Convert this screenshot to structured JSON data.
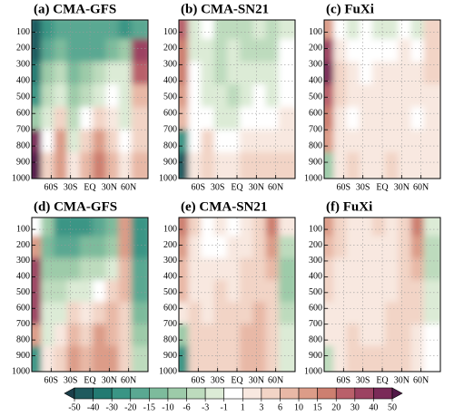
{
  "chart_data": [
    {
      "type": "heatmap",
      "title": "(a) CMA-GFS",
      "xlim": [
        -90,
        90
      ],
      "ylim": [
        1000,
        25
      ],
      "grid": true,
      "xticks": [
        {
          "value": -60,
          "label": "60S"
        },
        {
          "value": -30,
          "label": "30S"
        },
        {
          "value": 0,
          "label": "EQ"
        },
        {
          "value": 30,
          "label": "30N"
        },
        {
          "value": 60,
          "label": "60N"
        }
      ],
      "yticks": [
        100,
        200,
        300,
        400,
        500,
        600,
        700,
        800,
        900,
        1000
      ],
      "values": [
        [
          -50,
          -30,
          -20,
          -20,
          -20,
          -20,
          -20,
          -30,
          -20
        ],
        [
          -50,
          -20,
          -15,
          -20,
          -20,
          -20,
          -15,
          -10,
          30
        ],
        [
          -40,
          -10,
          -6,
          -15,
          -10,
          -6,
          -3,
          -3,
          20
        ],
        [
          -30,
          -6,
          -3,
          -10,
          -6,
          -3,
          -1,
          -3,
          6
        ],
        [
          -10,
          -3,
          3,
          -6,
          -1,
          3,
          1,
          -3,
          3
        ],
        [
          40,
          -1,
          10,
          -3,
          3,
          10,
          3,
          -1,
          3
        ],
        [
          50,
          3,
          10,
          1,
          6,
          15,
          6,
          1,
          6
        ]
      ]
    },
    {
      "type": "heatmap",
      "title": "(b) CMA-SN21",
      "xlim": [
        -90,
        90
      ],
      "ylim": [
        1000,
        25
      ],
      "grid": true,
      "xticks": [
        {
          "value": -60,
          "label": "60S"
        },
        {
          "value": -30,
          "label": "30S"
        },
        {
          "value": 0,
          "label": "EQ"
        },
        {
          "value": 30,
          "label": "30N"
        },
        {
          "value": 60,
          "label": "60N"
        }
      ],
      "yticks": [
        100,
        200,
        300,
        400,
        500,
        600,
        700,
        800,
        900,
        1000
      ],
      "values": [
        [
          20,
          -3,
          -1,
          -6,
          -6,
          -6,
          -3,
          -6,
          -3
        ],
        [
          15,
          -3,
          -3,
          -6,
          -3,
          -6,
          -6,
          -6,
          -1
        ],
        [
          15,
          -1,
          -3,
          -6,
          -3,
          -3,
          -3,
          -3,
          -1
        ],
        [
          10,
          -1,
          -3,
          -3,
          -6,
          -3,
          -1,
          -3,
          -1
        ],
        [
          6,
          -1,
          -1,
          -3,
          -3,
          -1,
          -1,
          -1,
          1
        ],
        [
          -30,
          -1,
          3,
          -1,
          -1,
          1,
          1,
          1,
          1
        ],
        [
          -50,
          1,
          3,
          1,
          1,
          3,
          3,
          3,
          3
        ]
      ]
    },
    {
      "type": "heatmap",
      "title": "(c) FuXi",
      "xlim": [
        -90,
        90
      ],
      "ylim": [
        1000,
        25
      ],
      "grid": true,
      "xticks": [
        {
          "value": -60,
          "label": "60S"
        },
        {
          "value": -30,
          "label": "30S"
        },
        {
          "value": 0,
          "label": "EQ"
        },
        {
          "value": 30,
          "label": "30N"
        },
        {
          "value": 60,
          "label": "60N"
        }
      ],
      "yticks": [
        100,
        200,
        300,
        400,
        500,
        600,
        700,
        800,
        900,
        1000
      ],
      "values": [
        [
          10,
          -1,
          -3,
          -1,
          -3,
          -3,
          -1,
          -3,
          3
        ],
        [
          30,
          1,
          -1,
          -1,
          -1,
          -1,
          1,
          -1,
          3
        ],
        [
          40,
          3,
          1,
          -1,
          1,
          1,
          1,
          1,
          3
        ],
        [
          20,
          3,
          1,
          1,
          1,
          1,
          1,
          1,
          1
        ],
        [
          15,
          1,
          -1,
          1,
          1,
          1,
          1,
          -1,
          1
        ],
        [
          10,
          1,
          1,
          1,
          1,
          1,
          1,
          1,
          1
        ],
        [
          -10,
          1,
          3,
          1,
          1,
          3,
          1,
          1,
          1
        ]
      ]
    },
    {
      "type": "heatmap",
      "title": "(d) CMA-GFS",
      "xlim": [
        -90,
        90
      ],
      "ylim": [
        1000,
        25
      ],
      "grid": true,
      "xticks": [
        {
          "value": -60,
          "label": "60S"
        },
        {
          "value": -30,
          "label": "30S"
        },
        {
          "value": 0,
          "label": "EQ"
        },
        {
          "value": 30,
          "label": "30N"
        },
        {
          "value": 60,
          "label": "60N"
        }
      ],
      "yticks": [
        100,
        200,
        300,
        400,
        500,
        600,
        700,
        800,
        900,
        1000
      ],
      "values": [
        [
          -1,
          -10,
          -30,
          -30,
          -30,
          -20,
          -15,
          10,
          -30
        ],
        [
          10,
          -15,
          -20,
          -20,
          -15,
          -15,
          -10,
          10,
          -30
        ],
        [
          30,
          -10,
          -10,
          -10,
          -6,
          -6,
          -3,
          6,
          -20
        ],
        [
          30,
          -6,
          -6,
          -3,
          -3,
          -1,
          3,
          6,
          -20
        ],
        [
          30,
          -3,
          -3,
          3,
          1,
          3,
          6,
          3,
          -15
        ],
        [
          10,
          -3,
          1,
          6,
          3,
          10,
          6,
          3,
          -10
        ],
        [
          -30,
          1,
          3,
          10,
          6,
          10,
          10,
          3,
          -6
        ]
      ]
    },
    {
      "type": "heatmap",
      "title": "(e) CMA-SN21",
      "xlim": [
        -90,
        90
      ],
      "ylim": [
        1000,
        25
      ],
      "grid": true,
      "xticks": [
        {
          "value": -60,
          "label": "60S"
        },
        {
          "value": -30,
          "label": "30S"
        },
        {
          "value": 0,
          "label": "EQ"
        },
        {
          "value": 30,
          "label": "30N"
        },
        {
          "value": 60,
          "label": "60N"
        }
      ],
      "yticks": [
        100,
        200,
        300,
        400,
        500,
        600,
        700,
        800,
        900,
        1000
      ],
      "values": [
        [
          15,
          3,
          -1,
          1,
          -1,
          1,
          3,
          15,
          1
        ],
        [
          10,
          1,
          -1,
          -1,
          1,
          1,
          3,
          10,
          -6
        ],
        [
          6,
          1,
          1,
          1,
          1,
          3,
          3,
          6,
          -10
        ],
        [
          6,
          1,
          1,
          3,
          1,
          3,
          3,
          3,
          -10
        ],
        [
          1,
          3,
          1,
          3,
          3,
          3,
          6,
          3,
          -6
        ],
        [
          -10,
          3,
          3,
          3,
          3,
          6,
          6,
          3,
          -3
        ],
        [
          -30,
          3,
          3,
          3,
          3,
          6,
          6,
          3,
          -3
        ]
      ]
    },
    {
      "type": "heatmap",
      "title": "(f) FuXi",
      "xlim": [
        -90,
        90
      ],
      "ylim": [
        1000,
        25
      ],
      "grid": true,
      "xticks": [
        {
          "value": -60,
          "label": "60S"
        },
        {
          "value": -30,
          "label": "30S"
        },
        {
          "value": 0,
          "label": "EQ"
        },
        {
          "value": 30,
          "label": "30N"
        },
        {
          "value": 60,
          "label": "60N"
        }
      ],
      "yticks": [
        100,
        200,
        300,
        400,
        500,
        600,
        700,
        800,
        900,
        1000
      ],
      "values": [
        [
          10,
          3,
          1,
          1,
          3,
          1,
          3,
          15,
          -3
        ],
        [
          6,
          3,
          1,
          1,
          1,
          1,
          3,
          10,
          -6
        ],
        [
          3,
          1,
          1,
          1,
          1,
          1,
          3,
          6,
          -6
        ],
        [
          3,
          1,
          1,
          1,
          1,
          1,
          3,
          3,
          -3
        ],
        [
          1,
          1,
          1,
          1,
          1,
          3,
          3,
          3,
          -3
        ],
        [
          1,
          1,
          3,
          1,
          1,
          3,
          3,
          1,
          -1
        ],
        [
          -6,
          1,
          3,
          3,
          3,
          3,
          3,
          1,
          -1
        ]
      ]
    }
  ],
  "colorbar": {
    "ticks": [
      -50,
      -40,
      -30,
      -20,
      -15,
      -10,
      -6,
      -3,
      -1,
      1,
      3,
      6,
      10,
      15,
      20,
      30,
      40,
      50
    ],
    "colors": [
      "#1b3f4a",
      "#1f5a5e",
      "#237a72",
      "#3a9585",
      "#5aa892",
      "#7dbb9c",
      "#9dcba9",
      "#bddbbd",
      "#dcebd6",
      "#ffffff",
      "#f8e8e0",
      "#f2d4c6",
      "#e8b8a6",
      "#dc9c88",
      "#cd7f70",
      "#b9606a",
      "#9c4262",
      "#7a2a58",
      "#521848"
    ]
  }
}
